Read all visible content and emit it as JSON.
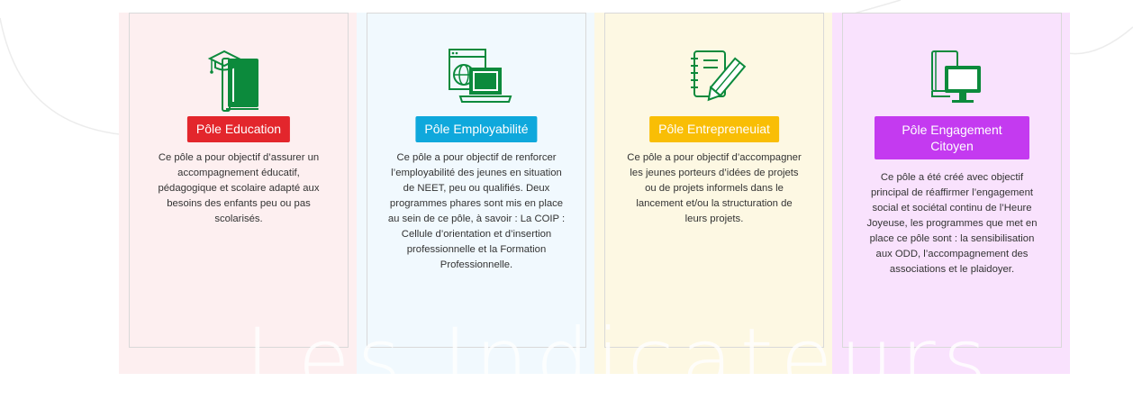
{
  "cards": [
    {
      "title": "Pôle Education",
      "color": "#e3262c",
      "bg": "#fdeff0",
      "icon": "book-graduation-cap-icon",
      "desc": "Ce pôle a pour objectif d’assurer un accompagnement éducatif, pédagogique et scolaire adapté aux besoins des enfants peu ou pas scolarisés."
    },
    {
      "title": "Pôle Employabilité",
      "color": "#0fa8dc",
      "bg": "#f1f9fe",
      "icon": "laptop-browser-globe-icon",
      "desc": "Ce pôle a pour objectif de renforcer l’employabilité des jeunes en situation de NEET, peu ou qualifiés. Deux programmes phares sont mis en place au sein de ce pôle, à savoir : La COIP : Cellule d’orientation et d’insertion professionnelle et la Formation Professionnelle."
    },
    {
      "title": "Pôle Entrepreneuiat",
      "color": "#f9be05",
      "bg": "#fdf8e3",
      "icon": "notebook-pencil-icon",
      "desc": "Ce pôle a pour objectif d’accompagner les jeunes porteurs d’idées de projets ou de projets informels dans le lancement et/ou la structuration de leurs projets."
    },
    {
      "title": "Pôle Engagement Citoyen",
      "color": "#c43af0",
      "bg": "#f9e2fd",
      "icon": "book-monitor-icon",
      "desc": "Ce pôle a été créé avec objectif principal de réaffirmer l’engagement social et sociétal continu de l’Heure Joyeuse, les programmes que met en place ce pôle sont : la sensibilisation aux ODD, l’accompagnement des associations et le plaidoyer."
    }
  ],
  "icon_color": "#0c8a3c",
  "watermark": "Les Indicateurs"
}
